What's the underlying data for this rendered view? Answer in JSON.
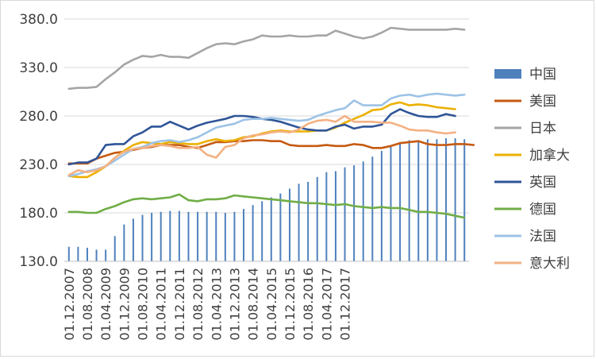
{
  "chart_data": {
    "type": "line",
    "title": "",
    "xlabel": "",
    "ylabel": "",
    "ylim": [
      130,
      380
    ],
    "y_ticks": [
      "130.0",
      "180.0",
      "230.0",
      "280.0",
      "330.0",
      "380.0"
    ],
    "x_tick_labels": [
      "01.12.2007",
      "01.08.2008",
      "01.04.2009",
      "01.12.2009",
      "01.08.2010",
      "01.04.2011",
      "01.12.2011",
      "01.08.2012",
      "01.04.2013",
      "01.12.2013",
      "01.08.2014",
      "01.04.2015",
      "01.12.2015",
      "01.08.2016",
      "01.04.2017",
      "01.12.2017"
    ],
    "x_tick_every": 2,
    "grid": "horizontal",
    "legend_position": "right",
    "x_start": "2007-12",
    "x_step": "quarter",
    "bar_series": {
      "name": "中国",
      "color": "#4f81bd",
      "values": [
        145,
        145,
        144,
        142,
        142,
        156,
        168,
        174,
        178,
        180,
        181,
        182,
        182,
        181,
        181,
        181,
        181,
        180,
        181,
        184,
        188,
        192,
        196,
        200,
        205,
        210,
        212,
        217,
        222,
        223,
        227,
        229,
        233,
        238,
        244,
        249,
        253,
        255,
        255,
        256,
        256,
        257,
        257,
        256
      ]
    },
    "series": [
      {
        "name": "美国",
        "color": "#c55a11",
        "values": [
          231,
          231,
          231,
          236,
          239,
          242,
          243,
          245,
          247,
          248,
          250,
          250,
          250,
          248,
          247,
          250,
          253,
          253,
          254,
          254,
          255,
          255,
          254,
          254,
          250,
          249,
          249,
          249,
          250,
          249,
          249,
          251,
          250,
          247,
          247,
          249,
          252,
          253,
          254,
          251,
          250,
          250,
          251,
          251,
          250
        ]
      },
      {
        "name": "日本",
        "color": "#a5a5a5",
        "values": [
          308,
          309,
          309,
          310,
          318,
          325,
          333,
          338,
          342,
          341,
          343,
          341,
          341,
          340,
          345,
          350,
          354,
          355,
          354,
          357,
          359,
          363,
          362,
          362,
          363,
          362,
          362,
          363,
          363,
          368,
          365,
          362,
          360,
          362,
          366,
          371,
          370,
          369,
          369,
          369,
          369,
          369,
          370,
          369
        ]
      },
      {
        "name": "加拿大",
        "color": "#ebb000",
        "values": [
          218,
          217,
          217,
          222,
          228,
          237,
          244,
          250,
          253,
          252,
          251,
          253,
          252,
          251,
          251,
          254,
          256,
          254,
          255,
          258,
          259,
          262,
          264,
          265,
          264,
          264,
          264,
          265,
          265,
          268,
          273,
          277,
          281,
          286,
          287,
          292,
          294,
          291,
          292,
          291,
          289,
          288,
          287
        ]
      },
      {
        "name": "英国",
        "color": "#2f5597",
        "values": [
          230,
          232,
          232,
          236,
          250,
          251,
          251,
          259,
          263,
          269,
          269,
          274,
          270,
          266,
          270,
          273,
          275,
          277,
          280,
          280,
          279,
          277,
          276,
          274,
          271,
          268,
          266,
          265,
          265,
          269,
          271,
          267,
          269,
          269,
          271,
          282,
          287,
          283,
          280,
          279,
          279,
          282,
          280
        ]
      },
      {
        "name": "德国",
        "color": "#70ad47",
        "values": [
          181,
          181,
          180,
          180,
          184,
          187,
          191,
          194,
          195,
          194,
          195,
          196,
          199,
          193,
          192,
          194,
          194,
          195,
          198,
          197,
          196,
          195,
          194,
          193,
          192,
          191,
          190,
          190,
          189,
          188,
          189,
          187,
          186,
          185,
          186,
          185,
          185,
          183,
          181,
          181,
          180,
          179,
          177,
          175
        ]
      },
      {
        "name": "法国",
        "color": "#9dc3e6",
        "values": [
          218,
          220,
          223,
          225,
          228,
          234,
          240,
          246,
          248,
          252,
          254,
          255,
          253,
          255,
          258,
          263,
          268,
          270,
          272,
          276,
          277,
          277,
          278,
          277,
          276,
          275,
          276,
          280,
          283,
          286,
          288,
          296,
          291,
          291,
          291,
          298,
          301,
          302,
          300,
          302,
          303,
          302,
          301,
          302
        ]
      },
      {
        "name": "意大利",
        "color": "#f4b183",
        "values": [
          219,
          224,
          222,
          224,
          228,
          237,
          243,
          246,
          247,
          249,
          250,
          249,
          247,
          247,
          248,
          240,
          237,
          248,
          250,
          257,
          260,
          261,
          263,
          264,
          263,
          266,
          272,
          275,
          276,
          274,
          280,
          274,
          274,
          274,
          273,
          273,
          270,
          266,
          265,
          265,
          263,
          262,
          263
        ]
      }
    ]
  }
}
